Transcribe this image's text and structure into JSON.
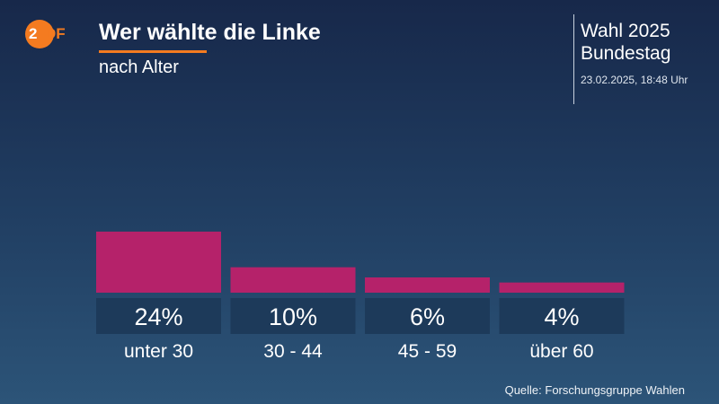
{
  "logo": {
    "first": "2",
    "rest": "DF"
  },
  "header": {
    "title": "Wer wählte die Linke",
    "subtitle": "nach Alter",
    "event_line1": "Wahl 2025",
    "event_line2": "Bundestag",
    "timestamp": "23.02.2025, 18:48 Uhr"
  },
  "source": "Quelle: Forschungsgruppe Wahlen",
  "colors": {
    "bar": "#b5226a",
    "label_box": "#1d3a5a",
    "accent": "#f47b20"
  },
  "chart_data": {
    "type": "bar",
    "categories": [
      "unter 30",
      "30 - 44",
      "45 - 59",
      "über 60"
    ],
    "values": [
      24,
      10,
      6,
      4
    ],
    "value_labels": [
      "24%",
      "10%",
      "6%",
      "4%"
    ],
    "title": "Wer wählte die Linke",
    "subtitle": "nach Alter",
    "unit": "%",
    "ylim": [
      0,
      24
    ],
    "grid": false
  }
}
